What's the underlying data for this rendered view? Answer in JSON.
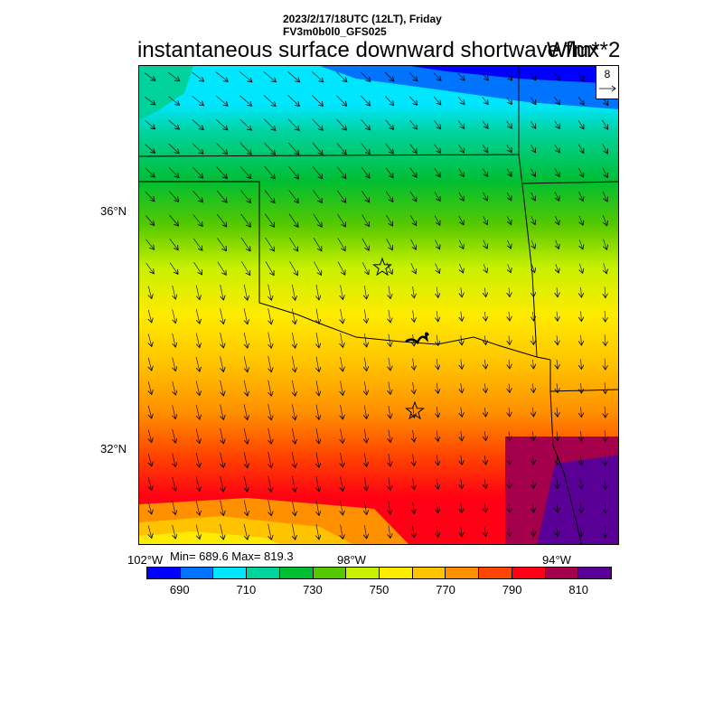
{
  "header": {
    "line1": "2023/2/17/18UTC (12LT), Friday",
    "line2": "FV3m0b0l0_GFS025"
  },
  "title": "instantaneous surface downward shortwave flux",
  "units": "W/m**2",
  "axes": {
    "lat_labels": [
      "36°N",
      "32°N"
    ],
    "lon_labels": [
      "102°W",
      "98°W",
      "94°W"
    ]
  },
  "stats": "Min= 689.6 Max= 819.3",
  "reference_vector": "8",
  "colorbar": {
    "labels": [
      "690",
      "710",
      "730",
      "750",
      "770",
      "790",
      "810"
    ],
    "colors": [
      "#0000ff",
      "#0073ff",
      "#00e6ff",
      "#00d29b",
      "#00be32",
      "#55c800",
      "#c8f000",
      "#ffeb00",
      "#ffc300",
      "#ff9100",
      "#ff4600",
      "#ff0014",
      "#a5004b",
      "#5a0096"
    ]
  }
}
